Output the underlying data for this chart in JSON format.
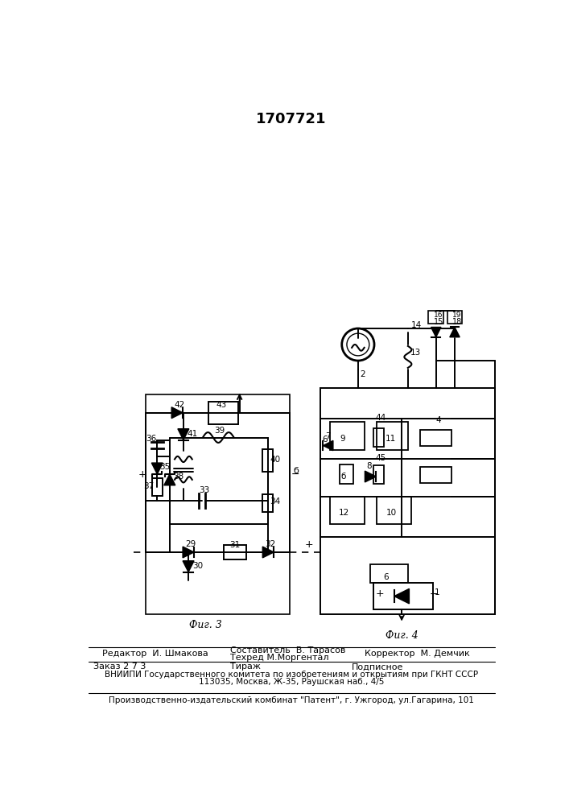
{
  "patent_number": "1707721",
  "editor_line": "Редактор  И. Шмакова",
  "compiler_line1": "Составитель  В. Тарасов",
  "compiler_line2": "Техред М.Моргентал",
  "corrector_line": "Корректор  М. Демчик",
  "order_line": "Заказ 2 7 3",
  "tirage_line": "Тираж",
  "podpisnoe_line": "Подписное",
  "vniipи_line": "ВНИИПИ Государственного комитета по изобретениям и открытиям при ГКНТ СССР",
  "address_line": "113035, Москва, Ж-35, Раушская наб., 4/5",
  "factory_line": "Производственно-издательский комбинат \"Патент\", г. Ужгород, ул.Гагарина, 101",
  "fig3_label": "Фиг. 3",
  "fig4_label": "Фиг. 4",
  "bg_color": "#ffffff",
  "line_color": "#000000",
  "text_color": "#000000"
}
